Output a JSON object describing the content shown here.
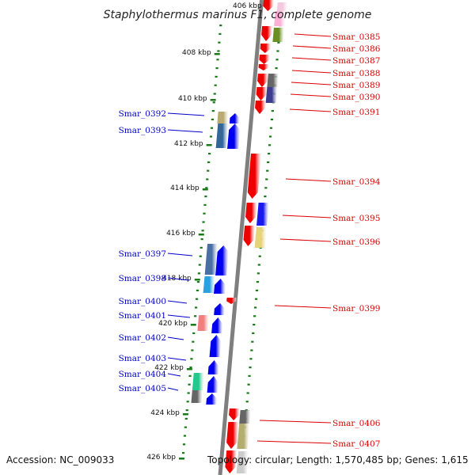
{
  "title": "Staphylothermus marinus F1, complete genome",
  "top_ghost_label": "406 kbp",
  "colors": {
    "backbone": "#7f7f7f",
    "tick": "#1a7a1a",
    "forward_gene": "#ee0000",
    "reverse_gene": "#0000ee",
    "left_label": "#0000cc",
    "right_label": "#dd0000"
  },
  "kbp_ticks": [
    "408 kbp",
    "410 kbp",
    "412 kbp",
    "414 kbp",
    "416 kbp",
    "418 kbp",
    "420 kbp",
    "422 kbp",
    "424 kbp",
    "426 kbp"
  ],
  "left_labels": [
    "Smar_0392",
    "Smar_0393",
    "Smar_0397",
    "Smar_0398",
    "Smar_0400",
    "Smar_0401",
    "Smar_0402",
    "Smar_0403",
    "Smar_0404",
    "Smar_0405"
  ],
  "right_labels": [
    "Smar_0385",
    "Smar_0386",
    "Smar_0387",
    "Smar_0388",
    "Smar_0389",
    "Smar_0390",
    "Smar_0391",
    "Smar_0394",
    "Smar_0395",
    "Smar_0396",
    "Smar_0399",
    "Smar_0406",
    "Smar_0407"
  ],
  "footer": {
    "accession": "Accession: NC_009033",
    "topology": "Topology: circular; Length: 1,570,485 bp; Genes: 1,615"
  }
}
